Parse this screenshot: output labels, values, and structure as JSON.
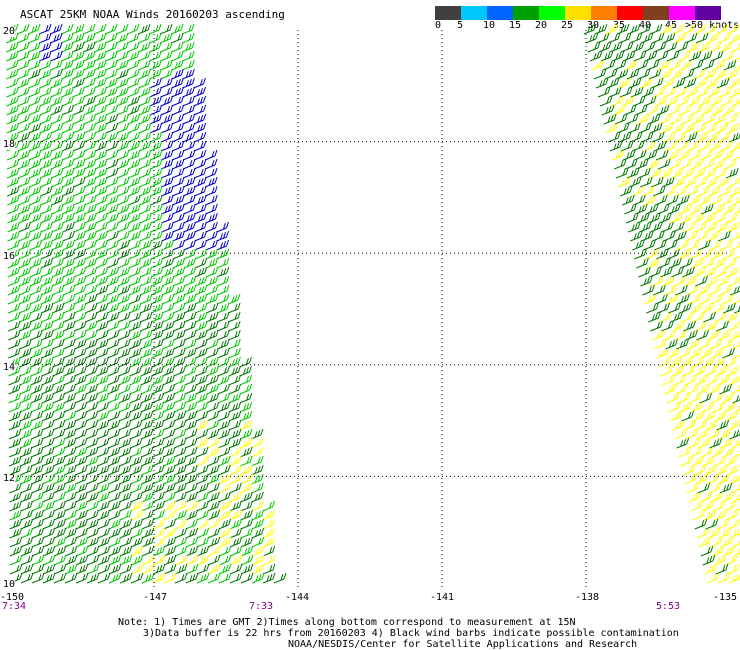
{
  "title": "ASCAT 25KM NOAA Winds 20160203 ascending",
  "legend": {
    "colors": [
      "#404040",
      "#a0a0a0",
      "#00c8ff",
      "#0064ff",
      "#008000",
      "#00c800",
      "#ffff00",
      "#ffa000",
      "#ff5000",
      "#ff0000",
      "#a00000",
      "#804020",
      "#c080a0",
      "#e000e0",
      "#a000ff",
      "#500080"
    ],
    "labels": [
      "0",
      "5",
      "10",
      "15",
      "20",
      "25",
      "30",
      "35",
      "40",
      "45",
      ">50 knots"
    ]
  },
  "map": {
    "lat_labels": [
      "20",
      "18",
      "16",
      "14",
      "12",
      "10"
    ],
    "lon_labels": [
      "-150",
      "-147",
      "-144",
      "-141",
      "-138",
      "-135"
    ],
    "lat_range": [
      10,
      20
    ],
    "lon_range": [
      -150,
      -135
    ],
    "grid": "dotted"
  },
  "times": [
    "7:34",
    "7:33",
    "5:53"
  ],
  "notes": [
    "Note: 1) Times are GMT 2)Times along bottom correspond to measurement at 15N",
    "3)Data buffer is 22 hrs from 20160203 4) Black wind barbs indicate possible contamination",
    "NOAA/NESDIS/Center for Satellite Applications and Research"
  ],
  "wind_colors": {
    "lt15": "#0000c8",
    "15to20": "#00c800",
    "20to25": "#007800",
    "25to30": "#ffff00"
  }
}
